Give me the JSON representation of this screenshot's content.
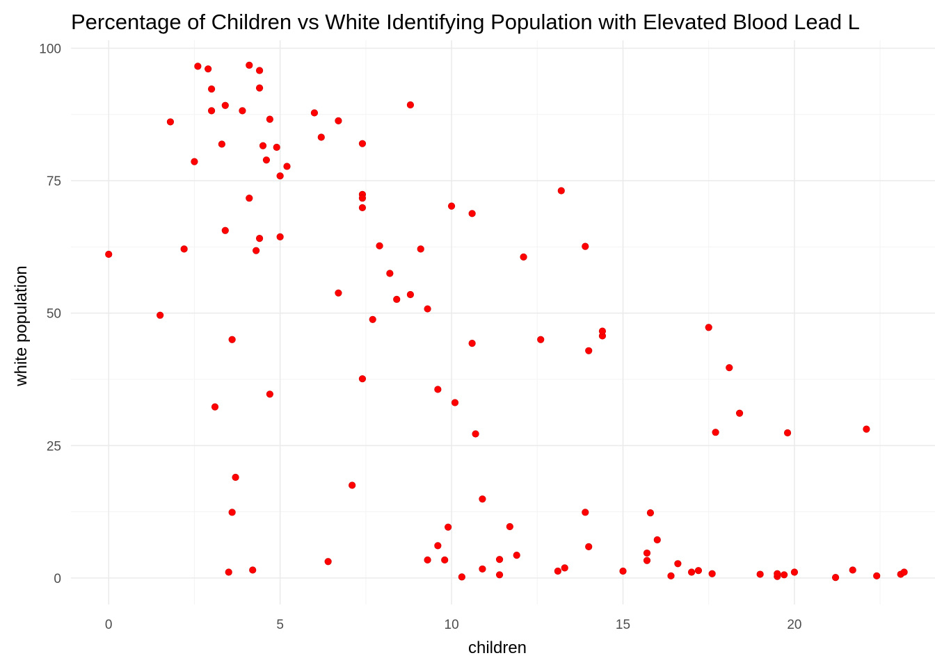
{
  "chart_data": {
    "type": "scatter",
    "title": "Percentage of Children vs White Identifying Population with Elevated Blood Lead L",
    "xlabel": "children",
    "ylabel": "white population",
    "xlim": [
      -1.1,
      24.1
    ],
    "ylim": [
      -5,
      101.5
    ],
    "x_ticks": [
      0,
      5,
      10,
      15,
      20
    ],
    "x_tick_labels": [
      "0",
      "5",
      "10",
      "15",
      "20"
    ],
    "y_ticks": [
      0,
      25,
      50,
      75,
      100
    ],
    "y_tick_labels": [
      "0",
      "25",
      "50",
      "75",
      "100"
    ],
    "grid": true,
    "point_color": "#ff0000",
    "points": [
      [
        0.0,
        61.1
      ],
      [
        1.5,
        49.6
      ],
      [
        1.8,
        86.1
      ],
      [
        2.2,
        62.1
      ],
      [
        2.5,
        78.6
      ],
      [
        2.6,
        96.6
      ],
      [
        2.9,
        96.1
      ],
      [
        3.0,
        92.3
      ],
      [
        3.0,
        88.2
      ],
      [
        3.1,
        32.3
      ],
      [
        3.3,
        81.9
      ],
      [
        3.4,
        89.2
      ],
      [
        3.4,
        65.6
      ],
      [
        3.5,
        1.1
      ],
      [
        3.6,
        45.0
      ],
      [
        3.6,
        12.4
      ],
      [
        3.7,
        19.0
      ],
      [
        3.9,
        88.2
      ],
      [
        4.1,
        71.7
      ],
      [
        4.1,
        96.8
      ],
      [
        4.2,
        1.5
      ],
      [
        4.3,
        61.8
      ],
      [
        4.4,
        64.1
      ],
      [
        4.4,
        92.5
      ],
      [
        4.4,
        95.8
      ],
      [
        4.5,
        81.6
      ],
      [
        4.6,
        78.9
      ],
      [
        4.7,
        34.7
      ],
      [
        4.7,
        86.6
      ],
      [
        4.9,
        81.3
      ],
      [
        5.0,
        75.9
      ],
      [
        5.0,
        64.4
      ],
      [
        5.2,
        77.7
      ],
      [
        6.0,
        87.8
      ],
      [
        6.2,
        83.2
      ],
      [
        6.4,
        3.1
      ],
      [
        6.7,
        86.3
      ],
      [
        6.7,
        53.8
      ],
      [
        7.1,
        17.5
      ],
      [
        7.4,
        82.0
      ],
      [
        7.4,
        72.4
      ],
      [
        7.4,
        71.7
      ],
      [
        7.4,
        69.9
      ],
      [
        7.4,
        37.6
      ],
      [
        7.7,
        48.8
      ],
      [
        7.9,
        62.7
      ],
      [
        8.2,
        57.5
      ],
      [
        8.4,
        52.6
      ],
      [
        8.8,
        89.3
      ],
      [
        8.8,
        53.5
      ],
      [
        9.1,
        62.1
      ],
      [
        9.3,
        50.8
      ],
      [
        9.3,
        3.4
      ],
      [
        9.6,
        35.6
      ],
      [
        9.6,
        6.1
      ],
      [
        9.8,
        3.4
      ],
      [
        9.9,
        9.6
      ],
      [
        10.0,
        70.2
      ],
      [
        10.1,
        33.1
      ],
      [
        10.3,
        0.2
      ],
      [
        10.6,
        44.3
      ],
      [
        10.6,
        68.8
      ],
      [
        10.7,
        27.2
      ],
      [
        10.9,
        1.7
      ],
      [
        10.9,
        14.9
      ],
      [
        11.4,
        3.5
      ],
      [
        11.4,
        0.6
      ],
      [
        11.7,
        9.7
      ],
      [
        11.9,
        4.3
      ],
      [
        12.1,
        60.6
      ],
      [
        12.6,
        45.0
      ],
      [
        13.1,
        1.3
      ],
      [
        13.2,
        73.1
      ],
      [
        13.3,
        1.9
      ],
      [
        13.9,
        62.6
      ],
      [
        13.9,
        12.4
      ],
      [
        14.0,
        5.9
      ],
      [
        14.0,
        42.9
      ],
      [
        14.4,
        45.7
      ],
      [
        14.4,
        46.6
      ],
      [
        15.0,
        1.3
      ],
      [
        15.7,
        3.3
      ],
      [
        15.7,
        4.7
      ],
      [
        15.8,
        12.3
      ],
      [
        16.0,
        7.2
      ],
      [
        16.4,
        0.4
      ],
      [
        16.6,
        2.7
      ],
      [
        17.0,
        1.1
      ],
      [
        17.2,
        1.4
      ],
      [
        17.5,
        47.3
      ],
      [
        17.6,
        0.8
      ],
      [
        17.7,
        27.5
      ],
      [
        18.1,
        39.7
      ],
      [
        18.4,
        31.1
      ],
      [
        19.0,
        0.7
      ],
      [
        19.5,
        0.3
      ],
      [
        19.5,
        0.8
      ],
      [
        19.7,
        0.6
      ],
      [
        19.8,
        27.4
      ],
      [
        20.0,
        1.1
      ],
      [
        21.2,
        0.1
      ],
      [
        21.7,
        1.5
      ],
      [
        22.1,
        28.1
      ],
      [
        22.4,
        0.4
      ],
      [
        23.1,
        0.7
      ],
      [
        23.2,
        1.1
      ]
    ]
  }
}
